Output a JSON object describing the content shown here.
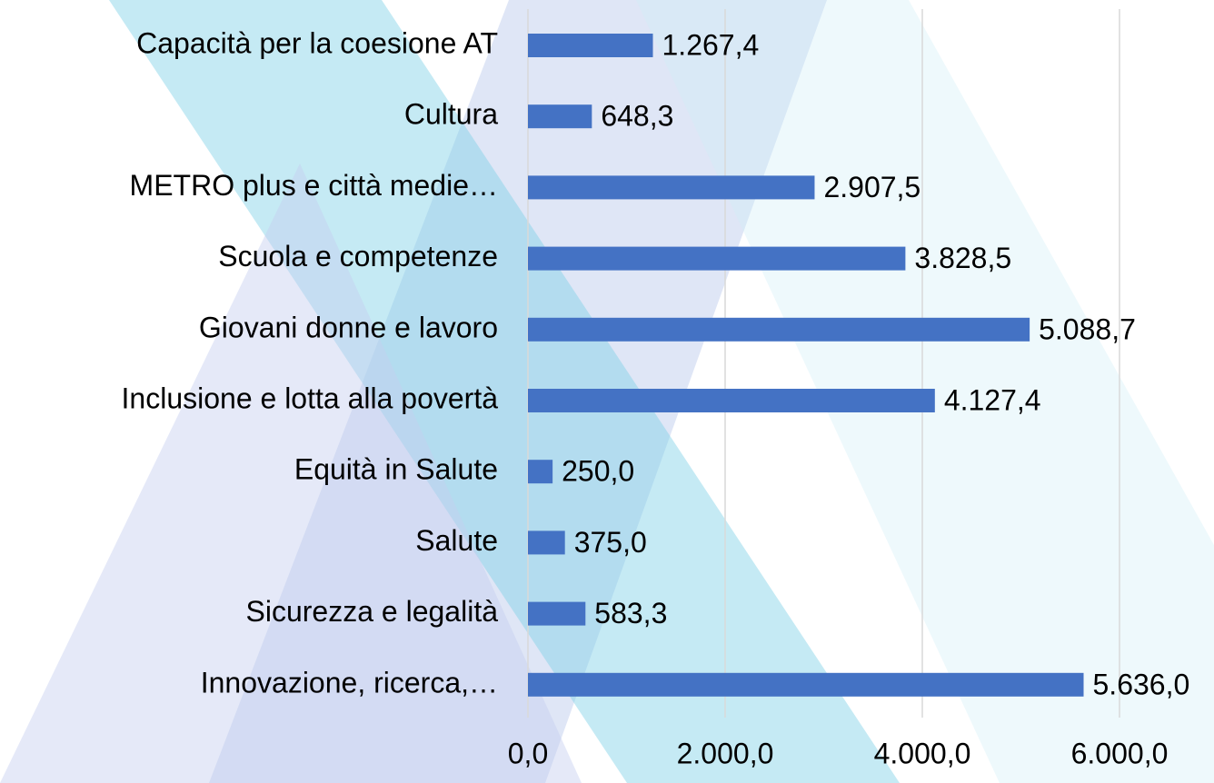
{
  "chart_data": {
    "type": "bar",
    "orientation": "horizontal",
    "categories": [
      "Capacità per la coesione AT",
      "Cultura",
      "METRO plus e città medie…",
      "Scuola e competenze",
      "Giovani donne e lavoro",
      "Inclusione e lotta alla povertà",
      "Equità in Salute",
      "Salute",
      "Sicurezza e legalità",
      "Innovazione, ricerca,…"
    ],
    "values": [
      1267.4,
      648.3,
      2907.5,
      3828.5,
      5088.7,
      4127.4,
      250.0,
      375.0,
      583.3,
      5636.0
    ],
    "value_labels": [
      "1.267,4",
      "648,3",
      "2.907,5",
      "3.828,5",
      "5.088,7",
      "4.127,4",
      "250,0",
      "375,0",
      "583,3",
      "5.636,0"
    ],
    "color": "#4472c4",
    "xlim": [
      0,
      6000
    ],
    "xticks": [
      {
        "value": 0,
        "label": "0,0"
      },
      {
        "value": 2000,
        "label": "2.000,0"
      },
      {
        "value": 4000,
        "label": "4.000,0"
      },
      {
        "value": 6000,
        "label": "6.000,0"
      }
    ],
    "grid": true
  }
}
